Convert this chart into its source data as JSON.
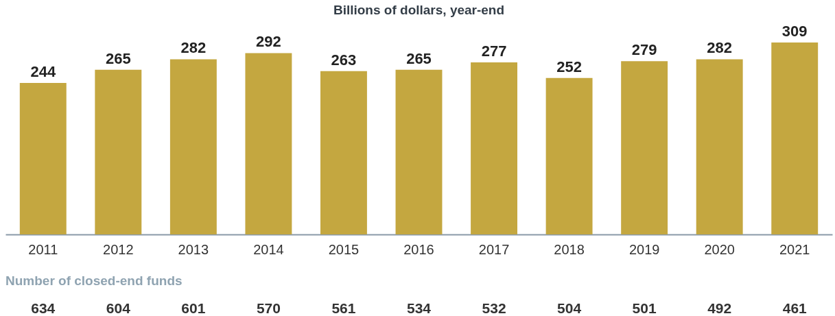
{
  "chart_data": {
    "type": "bar",
    "title": "Billions of dollars, year-end",
    "categories": [
      "2011",
      "2012",
      "2013",
      "2014",
      "2015",
      "2016",
      "2017",
      "2018",
      "2019",
      "2020",
      "2021"
    ],
    "values": [
      244,
      265,
      282,
      292,
      263,
      265,
      277,
      252,
      279,
      282,
      309
    ],
    "color": "#c4a740",
    "data_labels": true,
    "grid": false,
    "annotations": [
      "Number of closed-end funds",
      "634",
      "604",
      "601",
      "570",
      "561",
      "534",
      "532",
      "504",
      "501",
      "492",
      "461"
    ]
  }
}
